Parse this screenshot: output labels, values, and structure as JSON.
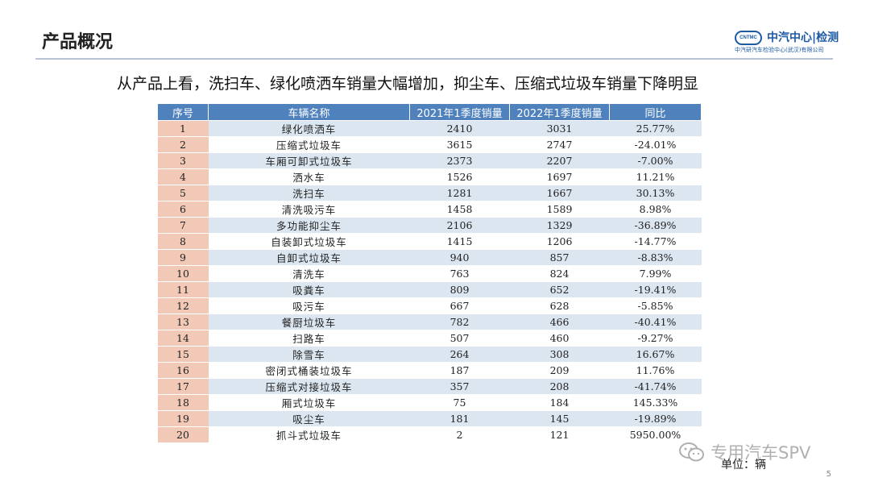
{
  "header": {
    "title": "产品概况",
    "logo_mark": "CNTMC",
    "logo_main": "中汽中心|检测",
    "logo_sub": "中汽研汽车检验中心(武汉)有限公司"
  },
  "subtitle": "从产品上看，洗扫车、绿化喷洒车销量大幅增加，抑尘车、压缩式垃圾车销量下降明显",
  "table": {
    "columns": [
      "序号",
      "车辆名称",
      "2021年1季度销量",
      "2022年1季度销量",
      "同比"
    ],
    "rows": [
      [
        "1",
        "绿化喷洒车",
        "2410",
        "3031",
        "25.77%"
      ],
      [
        "2",
        "压缩式垃圾车",
        "3615",
        "2747",
        "-24.01%"
      ],
      [
        "3",
        "车厢可卸式垃圾车",
        "2373",
        "2207",
        "-7.00%"
      ],
      [
        "4",
        "洒水车",
        "1526",
        "1697",
        "11.21%"
      ],
      [
        "5",
        "洗扫车",
        "1281",
        "1667",
        "30.13%"
      ],
      [
        "6",
        "清洗吸污车",
        "1458",
        "1589",
        "8.98%"
      ],
      [
        "7",
        "多功能抑尘车",
        "2106",
        "1329",
        "-36.89%"
      ],
      [
        "8",
        "自装卸式垃圾车",
        "1415",
        "1206",
        "-14.77%"
      ],
      [
        "9",
        "自卸式垃圾车",
        "940",
        "857",
        "-8.83%"
      ],
      [
        "10",
        "清洗车",
        "763",
        "824",
        "7.99%"
      ],
      [
        "11",
        "吸粪车",
        "809",
        "652",
        "-19.41%"
      ],
      [
        "12",
        "吸污车",
        "667",
        "628",
        "-5.85%"
      ],
      [
        "13",
        "餐厨垃圾车",
        "782",
        "466",
        "-40.41%"
      ],
      [
        "14",
        "扫路车",
        "507",
        "460",
        "-9.27%"
      ],
      [
        "15",
        "除雪车",
        "264",
        "308",
        "16.67%"
      ],
      [
        "16",
        "密闭式桶装垃圾车",
        "187",
        "209",
        "11.76%"
      ],
      [
        "17",
        "压缩式对接垃圾车",
        "357",
        "208",
        "-41.74%"
      ],
      [
        "18",
        "厢式垃圾车",
        "75",
        "184",
        "145.33%"
      ],
      [
        "19",
        "吸尘车",
        "181",
        "145",
        "-19.89%"
      ],
      [
        "20",
        "抓斗式垃圾车",
        "2",
        "121",
        "5950.00%"
      ]
    ]
  },
  "watermark": "专用汽车SPV",
  "unit": "单位：辆",
  "page_number": "5"
}
